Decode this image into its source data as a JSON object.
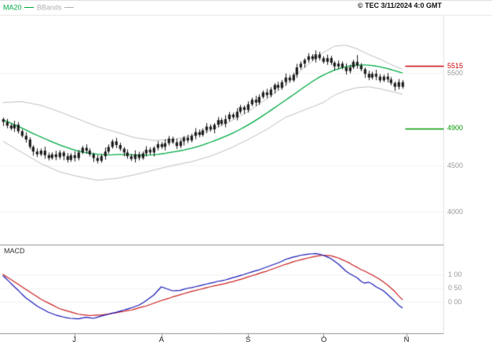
{
  "header": {
    "legend": [
      {
        "label": "MA20",
        "color": "#00aa44"
      },
      {
        "label": "BBands",
        "color": "#b0b0b0"
      }
    ],
    "copyright": "© TEC 3/11/2024 4:0 GMT"
  },
  "panels": {
    "macd_label": "MACD"
  },
  "axis": {
    "price_labels": [
      {
        "text": "5515",
        "value": 5515,
        "color": "#cc0000",
        "kind": "resistance"
      },
      {
        "text": "5500",
        "value": 5500,
        "color": "#999999",
        "kind": "tick"
      },
      {
        "text": "4900",
        "value": 4900,
        "color": "#009900",
        "kind": "support"
      },
      {
        "text": "4500",
        "value": 4500,
        "color": "#999999",
        "kind": "tick"
      },
      {
        "text": "4000",
        "value": 4000,
        "color": "#999999",
        "kind": "tick"
      }
    ],
    "macd_labels": [
      {
        "text": "1 00",
        "value": 100
      },
      {
        "text": "0 50",
        "value": 50
      },
      {
        "text": "0 00",
        "value": 0
      }
    ]
  },
  "chart_data": [
    {
      "type": "candlestick",
      "name": "price-panel",
      "ylim": [
        3950,
        5950
      ],
      "yticks": [
        5500,
        4500,
        4000
      ],
      "levels": [
        {
          "value": 5515,
          "color": "#cc0000",
          "kind": "resistance"
        },
        {
          "value": 4900,
          "color": "#009900",
          "kind": "support"
        }
      ],
      "month_ticks": [
        {
          "label": "J",
          "i": 19
        },
        {
          "label": "A",
          "i": 42
        },
        {
          "label": "S",
          "i": 65
        },
        {
          "label": "O",
          "i": 85
        },
        {
          "label": "N",
          "i": 107
        }
      ],
      "overlays": [
        "MA20",
        "BBands"
      ],
      "ma_color": "#00aa44",
      "bb_color": "#bdbdbd",
      "candle_color": "#1a1a1a",
      "candles": [
        [
          5000,
          5015,
          4930,
          4970
        ],
        [
          4970,
          5000,
          4905,
          4930
        ],
        [
          4930,
          4950,
          4882,
          4900
        ],
        [
          4900,
          4980,
          4865,
          4940
        ],
        [
          4940,
          4965,
          4848,
          4870
        ],
        [
          4870,
          4888,
          4805,
          4820
        ],
        [
          4820,
          4855,
          4750,
          4780
        ],
        [
          4780,
          4802,
          4680,
          4700
        ],
        [
          4700,
          4715,
          4610,
          4650
        ],
        [
          4650,
          4680,
          4595,
          4620
        ],
        [
          4620,
          4680,
          4602,
          4660
        ],
        [
          4660,
          4700,
          4575,
          4610
        ],
        [
          4610,
          4635,
          4558,
          4580
        ],
        [
          4580,
          4638,
          4565,
          4620
        ],
        [
          4620,
          4655,
          4560,
          4590
        ],
        [
          4590,
          4662,
          4570,
          4640
        ],
        [
          4640,
          4655,
          4560,
          4600
        ],
        [
          4600,
          4630,
          4535,
          4560
        ],
        [
          4560,
          4630,
          4542,
          4610
        ],
        [
          4610,
          4650,
          4545,
          4580
        ],
        [
          4580,
          4665,
          4558,
          4640
        ],
        [
          4640,
          4708,
          4625,
          4690
        ],
        [
          4690,
          4725,
          4630,
          4660
        ],
        [
          4660,
          4682,
          4600,
          4620
        ],
        [
          4620,
          4635,
          4540,
          4580
        ],
        [
          4580,
          4610,
          4525,
          4550
        ],
        [
          4550,
          4620,
          4532,
          4600
        ],
        [
          4600,
          4690,
          4565,
          4650
        ],
        [
          4650,
          4725,
          4628,
          4700
        ],
        [
          4700,
          4778,
          4685,
          4760
        ],
        [
          4760,
          4795,
          4690,
          4720
        ],
        [
          4720,
          4742,
          4660,
          4680
        ],
        [
          4680,
          4695,
          4600,
          4640
        ],
        [
          4640,
          4670,
          4575,
          4600
        ],
        [
          4600,
          4620,
          4552,
          4570
        ],
        [
          4570,
          4660,
          4535,
          4620
        ],
        [
          4620,
          4645,
          4558,
          4580
        ],
        [
          4580,
          4648,
          4565,
          4630
        ],
        [
          4630,
          4705,
          4600,
          4670
        ],
        [
          4670,
          4692,
          4620,
          4640
        ],
        [
          4640,
          4705,
          4600,
          4690
        ],
        [
          4690,
          4760,
          4665,
          4730
        ],
        [
          4730,
          4750,
          4682,
          4700
        ],
        [
          4700,
          4780,
          4665,
          4740
        ],
        [
          4740,
          4815,
          4718,
          4790
        ],
        [
          4790,
          4808,
          4735,
          4750
        ],
        [
          4750,
          4785,
          4680,
          4710
        ],
        [
          4710,
          4782,
          4690,
          4760
        ],
        [
          4760,
          4815,
          4720,
          4800
        ],
        [
          4800,
          4830,
          4745,
          4770
        ],
        [
          4770,
          4840,
          4752,
          4820
        ],
        [
          4820,
          4900,
          4785,
          4860
        ],
        [
          4860,
          4885,
          4808,
          4830
        ],
        [
          4830,
          4898,
          4815,
          4880
        ],
        [
          4880,
          4955,
          4850,
          4920
        ],
        [
          4920,
          4942,
          4870,
          4890
        ],
        [
          4890,
          4955,
          4850,
          4940
        ],
        [
          4940,
          5020,
          4915,
          4990
        ],
        [
          4990,
          5010,
          4932,
          4950
        ],
        [
          4950,
          5040,
          4915,
          5000
        ],
        [
          5000,
          5075,
          4978,
          5050
        ],
        [
          5050,
          5068,
          5005,
          5020
        ],
        [
          5020,
          5115,
          4990,
          5080
        ],
        [
          5080,
          5152,
          5060,
          5130
        ],
        [
          5130,
          5145,
          5060,
          5100
        ],
        [
          5100,
          5190,
          5075,
          5160
        ],
        [
          5160,
          5230,
          5142,
          5210
        ],
        [
          5210,
          5250,
          5145,
          5180
        ],
        [
          5180,
          5265,
          5158,
          5240
        ],
        [
          5240,
          5308,
          5225,
          5290
        ],
        [
          5290,
          5325,
          5230,
          5260
        ],
        [
          5260,
          5342,
          5240,
          5320
        ],
        [
          5320,
          5385,
          5280,
          5370
        ],
        [
          5370,
          5400,
          5315,
          5340
        ],
        [
          5340,
          5420,
          5322,
          5400
        ],
        [
          5400,
          5490,
          5365,
          5450
        ],
        [
          5450,
          5475,
          5398,
          5420
        ],
        [
          5420,
          5498,
          5405,
          5480
        ],
        [
          5480,
          5595,
          5450,
          5560
        ],
        [
          5560,
          5622,
          5540,
          5600
        ],
        [
          5600,
          5655,
          5560,
          5640
        ],
        [
          5640,
          5710,
          5615,
          5680
        ],
        [
          5680,
          5700,
          5632,
          5650
        ],
        [
          5650,
          5740,
          5615,
          5700
        ],
        [
          5700,
          5725,
          5638,
          5660
        ],
        [
          5660,
          5678,
          5605,
          5620
        ],
        [
          5620,
          5695,
          5590,
          5660
        ],
        [
          5660,
          5682,
          5590,
          5610
        ],
        [
          5610,
          5625,
          5530,
          5570
        ],
        [
          5570,
          5630,
          5545,
          5600
        ],
        [
          5600,
          5620,
          5542,
          5560
        ],
        [
          5560,
          5600,
          5485,
          5520
        ],
        [
          5520,
          5585,
          5498,
          5560
        ],
        [
          5560,
          5638,
          5545,
          5620
        ],
        [
          5620,
          5690,
          5550,
          5580
        ],
        [
          5580,
          5602,
          5520,
          5540
        ],
        [
          5540,
          5555,
          5450,
          5490
        ],
        [
          5490,
          5520,
          5425,
          5450
        ],
        [
          5450,
          5510,
          5432,
          5490
        ],
        [
          5490,
          5530,
          5425,
          5460
        ],
        [
          5460,
          5485,
          5398,
          5420
        ],
        [
          5420,
          5478,
          5405,
          5460
        ],
        [
          5460,
          5495,
          5400,
          5430
        ],
        [
          5430,
          5452,
          5370,
          5390
        ],
        [
          5390,
          5405,
          5310,
          5350
        ],
        [
          5350,
          5430,
          5325,
          5400
        ],
        [
          5400,
          5420,
          5332,
          5350
        ]
      ],
      "ma20": [
        4990,
        4975,
        4958,
        4940,
        4922,
        4903,
        4884,
        4864,
        4845,
        4826,
        4808,
        4790,
        4772,
        4755,
        4738,
        4722,
        4707,
        4693,
        4679,
        4666,
        4654,
        4645,
        4638,
        4632,
        4626,
        4621,
        4617,
        4615,
        4614,
        4615,
        4617,
        4618,
        4618,
        4617,
        4615,
        4613,
        4611,
        4610,
        4611,
        4613,
        4616,
        4620,
        4625,
        4631,
        4638,
        4645,
        4652,
        4659,
        4667,
        4676,
        4686,
        4697,
        4709,
        4722,
        4736,
        4750,
        4765,
        4781,
        4797,
        4814,
        4832,
        4851,
        4871,
        4892,
        4914,
        4937,
        4961,
        4986,
        5012,
        5039,
        5066,
        5094,
        5122,
        5150,
        5178,
        5206,
        5234,
        5262,
        5291,
        5320,
        5349,
        5377,
        5404,
        5430,
        5454,
        5476,
        5496,
        5514,
        5530,
        5544,
        5556,
        5566,
        5574,
        5580,
        5584,
        5586,
        5586,
        5584,
        5580,
        5574,
        5566,
        5557,
        5547,
        5536,
        5524,
        5512,
        5500
      ],
      "bb_upper": [
        5180,
        5182,
        5184,
        5186,
        5188,
        5190,
        5182,
        5174,
        5166,
        5158,
        5150,
        5136,
        5122,
        5108,
        5094,
        5080,
        5064,
        5048,
        5032,
        5016,
        5000,
        4984,
        4968,
        4952,
        4936,
        4920,
        4908,
        4896,
        4884,
        4872,
        4860,
        4848,
        4836,
        4824,
        4812,
        4800,
        4794,
        4788,
        4782,
        4776,
        4770,
        4772,
        4774,
        4776,
        4778,
        4780,
        4788,
        4796,
        4804,
        4812,
        4820,
        4832,
        4844,
        4856,
        4868,
        4880,
        4898,
        4916,
        4934,
        4952,
        4970,
        4992,
        5014,
        5036,
        5058,
        5080,
        5108,
        5136,
        5164,
        5192,
        5220,
        5250,
        5280,
        5310,
        5340,
        5370,
        5408,
        5446,
        5484,
        5522,
        5560,
        5592,
        5624,
        5656,
        5688,
        5720,
        5743,
        5766,
        5790,
        5793,
        5796,
        5800,
        5787,
        5774,
        5760,
        5740,
        5720,
        5700,
        5683,
        5666,
        5650,
        5630,
        5610,
        5590,
        5573,
        5556,
        5540
      ],
      "bb_lower": [
        4760,
        4736,
        4712,
        4688,
        4664,
        4640,
        4616,
        4592,
        4568,
        4544,
        4520,
        4502,
        4484,
        4466,
        4448,
        4430,
        4420,
        4410,
        4400,
        4390,
        4380,
        4372,
        4364,
        4356,
        4348,
        4340,
        4344,
        4348,
        4352,
        4356,
        4360,
        4368,
        4376,
        4384,
        4392,
        4400,
        4410,
        4420,
        4430,
        4440,
        4450,
        4460,
        4470,
        4480,
        4490,
        4500,
        4508,
        4516,
        4524,
        4532,
        4540,
        4552,
        4564,
        4576,
        4588,
        4600,
        4616,
        4632,
        4648,
        4664,
        4680,
        4700,
        4720,
        4740,
        4760,
        4780,
        4802,
        4824,
        4846,
        4868,
        4890,
        4916,
        4942,
        4968,
        4994,
        5020,
        5036,
        5052,
        5068,
        5084,
        5100,
        5116,
        5132,
        5148,
        5164,
        5180,
        5207,
        5234,
        5260,
        5277,
        5294,
        5310,
        5320,
        5330,
        5340,
        5343,
        5346,
        5350,
        5343,
        5336,
        5330,
        5320,
        5310,
        5300,
        5290,
        5280,
        5270
      ]
    },
    {
      "type": "line",
      "name": "macd-panel",
      "title": "MACD",
      "yticks": [
        100,
        50,
        0
      ],
      "ylim": [
        -80,
        200
      ],
      "series": [
        {
          "name": "MACD",
          "color": "#1a1ab8",
          "values": [
            95,
            82,
            68,
            55,
            42,
            28,
            15,
            5,
            -5,
            -15,
            -23,
            -30,
            -38,
            -43,
            -48,
            -52,
            -55,
            -58,
            -60,
            -61,
            -62,
            -59,
            -56,
            -58,
            -60,
            -56,
            -52,
            -48,
            -45,
            -41,
            -38,
            -34,
            -30,
            -26,
            -22,
            -17,
            -12,
            -4,
            5,
            15,
            25,
            40,
            55,
            50,
            45,
            40,
            41,
            42,
            46,
            50,
            52,
            55,
            58,
            62,
            65,
            68,
            71,
            75,
            77,
            80,
            84,
            88,
            92,
            96,
            100,
            105,
            109,
            113,
            117,
            122,
            127,
            132,
            137,
            142,
            148,
            155,
            159,
            163,
            166,
            170,
            172,
            174,
            175,
            176,
            173,
            170,
            164,
            158,
            148,
            138,
            125,
            112,
            103,
            95,
            88,
            75,
            68,
            72,
            65,
            55,
            48,
            40,
            28,
            15,
            2,
            -12,
            -22
          ]
        },
        {
          "name": "Signal",
          "color": "#cc2222",
          "values": [
            100,
            91,
            82,
            73,
            64,
            55,
            46,
            37,
            28,
            19,
            10,
            3,
            -4,
            -11,
            -18,
            -25,
            -29,
            -33,
            -37,
            -41,
            -45,
            -47,
            -48,
            -50,
            -49,
            -48,
            -48,
            -46,
            -44,
            -42,
            -40,
            -37,
            -35,
            -32,
            -30,
            -26,
            -22,
            -18,
            -15,
            -10,
            -5,
            0,
            5,
            9,
            13,
            18,
            22,
            26,
            30,
            34,
            38,
            41,
            45,
            48,
            52,
            55,
            58,
            61,
            64,
            67,
            71,
            74,
            78,
            82,
            86,
            91,
            95,
            99,
            104,
            108,
            112,
            117,
            122,
            127,
            132,
            137,
            141,
            146,
            150,
            153,
            157,
            160,
            163,
            166,
            168,
            170,
            169,
            168,
            164,
            160,
            154,
            148,
            141,
            133,
            126,
            118,
            112,
            105,
            98,
            90,
            82,
            72,
            62,
            50,
            38,
            22,
            8
          ]
        }
      ]
    }
  ]
}
